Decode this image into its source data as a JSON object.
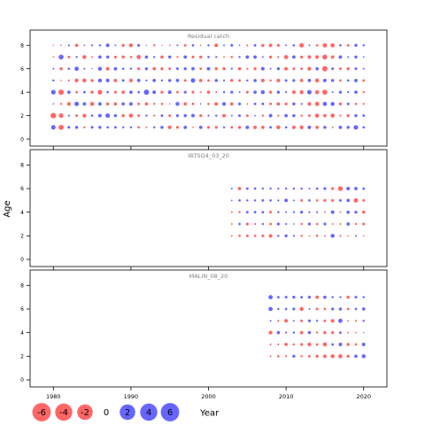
{
  "colors": {
    "positive": "#6666ff",
    "negative": "#ff6666",
    "axis": "#000000",
    "title": "#808080"
  },
  "chart_data": [
    {
      "type": "scatter",
      "subtype": "bubble",
      "title": "Residual catch",
      "xlim": [
        1977,
        2023
      ],
      "ylim": [
        -0.6,
        9.3
      ],
      "years": [
        1980,
        1981,
        1982,
        1983,
        1984,
        1985,
        1986,
        1987,
        1988,
        1989,
        1990,
        1991,
        1992,
        1993,
        1994,
        1995,
        1996,
        1997,
        1998,
        1999,
        2000,
        2001,
        2002,
        2003,
        2004,
        2005,
        2006,
        2007,
        2008,
        2009,
        2010,
        2011,
        2012,
        2013,
        2014,
        2015,
        2016,
        2017,
        2018,
        2019,
        2020
      ],
      "ages": [
        1,
        2,
        3,
        4,
        5,
        6,
        7,
        8
      ],
      "residuals": [
        [
          2.5,
          -3.8,
          0.3,
          2.7,
          0.6,
          0.4,
          -0.3,
          -0.2
        ],
        [
          -3.2,
          -2.6,
          -0.6,
          -3.6,
          -0.3,
          -1.2,
          3.0,
          -0.3
        ],
        [
          0.9,
          0.5,
          -1.7,
          1.4,
          -0.5,
          0.7,
          -0.8,
          0.5
        ],
        [
          1.2,
          -0.9,
          2.5,
          -0.8,
          -1.8,
          2.3,
          0.6,
          -1.3
        ],
        [
          -0.6,
          -1.8,
          1.5,
          0.8,
          -2.0,
          0.4,
          -1.9,
          0.3
        ],
        [
          0.9,
          0.7,
          -2.1,
          -1.2,
          -1.1,
          0.2,
          -0.4,
          0.5
        ],
        [
          1.1,
          1.5,
          1.5,
          -2.6,
          1.9,
          1.9,
          1.4,
          0.6
        ],
        [
          0.7,
          2.5,
          -1.2,
          0.7,
          1.7,
          -1.7,
          1.2,
          1.7
        ],
        [
          0.8,
          1.2,
          -1.4,
          -1.0,
          -1.5,
          1.5,
          -1.0,
          0.4
        ],
        [
          0.6,
          -1.2,
          1.3,
          -1.4,
          0.9,
          0.7,
          -1.2,
          -1.1
        ],
        [
          0.6,
          -2.2,
          1.6,
          1.4,
          -1.7,
          0.6,
          -0.7,
          -1.9
        ],
        [
          -0.7,
          -0.9,
          -0.8,
          0.7,
          1.4,
          -1.0,
          -2.3,
          0.9
        ],
        [
          -0.4,
          0.6,
          -1.3,
          3.5,
          0.5,
          1.1,
          1.3,
          0.2
        ],
        [
          0.6,
          -0.5,
          -0.6,
          1.5,
          1.4,
          -1.4,
          0.6,
          -0.6
        ],
        [
          1.2,
          0.8,
          -0.7,
          -1.1,
          0.6,
          -1.1,
          -1.3,
          -0.2
        ],
        [
          -1.7,
          -0.9,
          -0.3,
          1.6,
          1.2,
          -0.9,
          1.2,
          -0.3
        ],
        [
          -1.0,
          1.0,
          1.9,
          -0.8,
          1.4,
          0.9,
          -0.5,
          0.4
        ],
        [
          1.4,
          1.2,
          -1.4,
          1.0,
          -0.9,
          1.1,
          1.4,
          -0.8
        ],
        [
          -0.3,
          1.5,
          -0.8,
          -1.0,
          2.5,
          1.4,
          -1.0,
          0.7
        ],
        [
          1.4,
          -1.0,
          0.3,
          -0.4,
          -1.4,
          -0.8,
          -1.1,
          -0.3
        ],
        [
          -1.0,
          0.5,
          -0.7,
          -1.3,
          -0.8,
          1.5,
          0.7,
          0.6
        ],
        [
          -1.0,
          0.6,
          -1.6,
          -0.4,
          1.2,
          -1.2,
          0.6,
          -1.5
        ],
        [
          0.6,
          -1.5,
          1.7,
          0.6,
          0.5,
          -1.2,
          -0.4,
          0.4
        ],
        [
          -0.8,
          0.4,
          -1.4,
          1.1,
          -1.2,
          0.5,
          -0.7,
          0.9
        ],
        [
          -1.2,
          0.9,
          1.0,
          0.4,
          -0.9,
          -1.3,
          0.6,
          0.3
        ],
        [
          1.5,
          -0.9,
          -0.4,
          -0.9,
          0.6,
          -0.5,
          1.5,
          -0.5
        ],
        [
          -1.5,
          0.3,
          0.8,
          1.4,
          1.3,
          -1.1,
          1.5,
          0.8
        ],
        [
          -1.4,
          -0.6,
          0.9,
          2.0,
          -1.6,
          1.6,
          0.4,
          -1.2
        ],
        [
          0.8,
          1.5,
          -0.8,
          -1.1,
          -0.6,
          0.4,
          -1.1,
          -1.5
        ],
        [
          -1.9,
          -0.5,
          -1.4,
          1.2,
          -1.6,
          1.1,
          -0.5,
          -1.0
        ],
        [
          0.7,
          1.4,
          -1.0,
          0.5,
          0.9,
          -1.5,
          -2.2,
          0.4
        ],
        [
          -1.5,
          1.2,
          1.1,
          -1.6,
          1.0,
          -0.9,
          1.4,
          0.7
        ],
        [
          -1.9,
          -0.6,
          0.5,
          -1.9,
          -1.4,
          -0.8,
          -1.1,
          -2.5
        ],
        [
          1.5,
          -0.9,
          -1.8,
          2.5,
          1.4,
          -1.8,
          -1.6,
          0.4
        ],
        [
          -1.4,
          -2.1,
          -2.3,
          -2.0,
          -2.0,
          1.3,
          -1.6,
          -0.7
        ],
        [
          1.2,
          -1.4,
          2.2,
          -3.1,
          1.5,
          -3.5,
          -3.0,
          -2.4
        ],
        [
          -0.4,
          -2.1,
          2.0,
          0.4,
          1.2,
          0.9,
          -1.4,
          -2.2
        ],
        [
          1.4,
          -0.5,
          -1.1,
          1.1,
          -0.7,
          -0.9,
          1.5,
          0.7
        ],
        [
          1.1,
          -1.1,
          0.9,
          0.5,
          0.7,
          -1.1,
          0.4,
          -0.8
        ],
        [
          2.6,
          1.1,
          -0.7,
          1.3,
          1.5,
          0.9,
          1.2,
          1.1
        ],
        [
          0.7,
          0.8,
          -0.5,
          -0.6,
          -0.8,
          0.4,
          0.3,
          0.6
        ]
      ]
    },
    {
      "type": "scatter",
      "subtype": "bubble",
      "title": "IBTSQ4_03_20",
      "xlim": [
        1977,
        2023
      ],
      "ylim": [
        -0.6,
        9.3
      ],
      "years": [
        2003,
        2004,
        2005,
        2006,
        2007,
        2008,
        2009,
        2010,
        2011,
        2012,
        2013,
        2014,
        2015,
        2016,
        2017,
        2018,
        2019,
        2020
      ],
      "ages": [
        2,
        3,
        4,
        5,
        6
      ],
      "residuals": [
        [
          -0.4,
          -0.4,
          -0.4,
          0.3,
          0.4
        ],
        [
          -0.7,
          0.7,
          -0.6,
          0.7,
          -1.4
        ],
        [
          -0.9,
          -1.1,
          0.8,
          0.6,
          0.8
        ],
        [
          -0.7,
          -0.5,
          0.8,
          0.6,
          0.7
        ],
        [
          -0.9,
          0.6,
          0.8,
          0.8,
          0.6
        ],
        [
          -1.6,
          -0.8,
          -0.9,
          0.7,
          0.6
        ],
        [
          0.6,
          1.0,
          0.6,
          0.5,
          0.5
        ],
        [
          1.1,
          0.5,
          0.4,
          1.5,
          0.6
        ],
        [
          0.5,
          0.3,
          0.5,
          0.4,
          0.6
        ],
        [
          -0.6,
          -0.6,
          1.1,
          -0.8,
          0.6
        ],
        [
          -0.3,
          1.1,
          0.5,
          0.7,
          0.4
        ],
        [
          -0.7,
          -0.7,
          0.5,
          -0.7,
          0.7
        ],
        [
          -0.4,
          1.0,
          -0.4,
          -1.0,
          1.0
        ],
        [
          2.0,
          -0.4,
          1.6,
          -1.0,
          -1.0
        ],
        [
          -0.5,
          -0.4,
          -0.4,
          0.9,
          -2.8
        ],
        [
          -0.3,
          1.4,
          1.3,
          1.3,
          1.6
        ],
        [
          0.4,
          -0.6,
          1.1,
          -2.4,
          1.4
        ],
        [
          -0.3,
          -1.0,
          -1.3,
          -0.8,
          0.8
        ]
      ]
    },
    {
      "type": "scatter",
      "subtype": "bubble",
      "title": "MALIN_08_20",
      "xlim": [
        1977,
        2023
      ],
      "ylim": [
        -0.6,
        9.3
      ],
      "years": [
        2008,
        2009,
        2010,
        2011,
        2012,
        2013,
        2014,
        2015,
        2016,
        2017,
        2018,
        2019,
        2020
      ],
      "ages": [
        2,
        3,
        4,
        5,
        6,
        7
      ],
      "residuals": [
        [
          -0.4,
          -0.4,
          -1.8,
          0.4,
          2.2,
          2.3
        ],
        [
          -0.7,
          -0.5,
          1.3,
          -0.5,
          0.6,
          0.8
        ],
        [
          -0.5,
          -1.4,
          0.5,
          -1.7,
          0.7,
          0.9
        ],
        [
          1.1,
          -0.6,
          0.6,
          0.4,
          1.0,
          1.1
        ],
        [
          -0.6,
          -1.0,
          -1.4,
          -0.9,
          -2.0,
          0.8
        ],
        [
          -0.8,
          -1.8,
          1.2,
          1.0,
          0.4,
          1.1
        ],
        [
          -1.1,
          -0.8,
          -0.6,
          0.6,
          -0.9,
          -1.4
        ],
        [
          -1.5,
          -2.1,
          -1.2,
          -0.8,
          -0.7,
          1.3
        ],
        [
          -2.0,
          0.8,
          -1.1,
          -1.6,
          1.0,
          0.6
        ],
        [
          -2.1,
          1.5,
          0.8,
          2.3,
          1.2,
          0.5
        ],
        [
          -1.1,
          -1.2,
          -0.4,
          -0.4,
          -0.8,
          -1.2
        ],
        [
          1.3,
          -0.7,
          -0.3,
          -0.5,
          0.7,
          0.9
        ],
        [
          1.9,
          1.5,
          0.2,
          0.6,
          1.3,
          0.6
        ]
      ]
    }
  ],
  "axes": {
    "ylabel": "Age",
    "xlabel": "Year",
    "x_ticks": [
      "1980",
      "1990",
      "2000",
      "2010",
      "2020"
    ],
    "y_ticks": [
      "0",
      "2",
      "4",
      "6",
      "8"
    ]
  },
  "legend": {
    "values": [
      -6,
      -4,
      -2,
      0,
      2,
      4,
      6
    ],
    "labels": [
      "-6",
      "-4",
      "-2",
      "0",
      "2",
      "4",
      "6"
    ]
  }
}
